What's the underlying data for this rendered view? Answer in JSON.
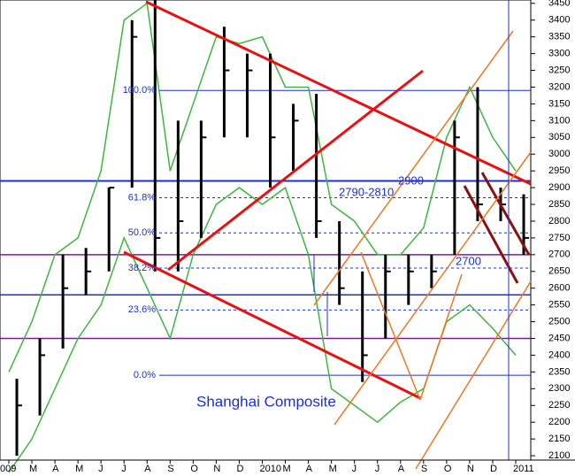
{
  "chart_data": {
    "type": "ohlc",
    "title": "Shanghai Composite",
    "categories": [
      "009",
      "M",
      "A",
      "M",
      "J",
      "J",
      "A",
      "S",
      "O",
      "N",
      "D",
      "2010",
      "M",
      "A",
      "M",
      "J",
      "J",
      "A",
      "S",
      "O",
      "N",
      "D",
      "2011"
    ],
    "high": [
      2330,
      2450,
      2700,
      2720,
      2900,
      3400,
      3460,
      3100,
      3100,
      3380,
      3300,
      3300,
      3150,
      3180,
      2800,
      2650,
      2700,
      2700,
      2700,
      3100,
      3200,
      2900,
      2880
    ],
    "low": [
      2100,
      2220,
      2420,
      2580,
      2650,
      2900,
      2650,
      2650,
      2750,
      3050,
      3050,
      2900,
      2950,
      2750,
      2550,
      2320,
      2450,
      2550,
      2600,
      2700,
      2800,
      2800,
      2700
    ],
    "close": [
      2250,
      2400,
      2600,
      2650,
      2900,
      3350,
      2750,
      2800,
      3050,
      3250,
      3250,
      3050,
      3100,
      2800,
      2600,
      2400,
      2650,
      2650,
      2650,
      3050,
      2850,
      2850,
      2750
    ],
    "band_upper": [
      2350,
      2500,
      2700,
      2750,
      2950,
      3400,
      3450,
      2950,
      3150,
      3350,
      3330,
      3350,
      3200,
      3200,
      2850,
      2800,
      2700,
      2700,
      2780,
      3050,
      3200,
      3050,
      2950
    ],
    "band_lower": [
      2050,
      2150,
      2300,
      2450,
      2550,
      2750,
      2600,
      2450,
      2700,
      2850,
      2900,
      2850,
      2900,
      2700,
      2300,
      2250,
      2200,
      2260,
      2300,
      2500,
      2550,
      2480,
      2400
    ],
    "bar_color": "#000000",
    "band_color": "#3cb83c",
    "ylim": [
      2087,
      3460
    ],
    "yticks": [
      2100,
      2150,
      2200,
      2250,
      2300,
      2350,
      2400,
      2450,
      2500,
      2550,
      2600,
      2650,
      2700,
      2750,
      2800,
      2850,
      2900,
      2950,
      3000,
      3050,
      3100,
      3150,
      3200,
      3250,
      3300,
      3350,
      3400,
      3450
    ],
    "levels": [
      {
        "value": 2920,
        "color": "#1c2fd6"
      },
      {
        "value": 2700,
        "color": "#7a1f8f"
      },
      {
        "value": 2450,
        "color": "#7a1f8f"
      },
      {
        "value": 2580,
        "color": "#1c2fd6"
      }
    ],
    "fib_levels": [
      {
        "value": 3190,
        "label": "100.0%"
      },
      {
        "value": 2870,
        "label": "61.8%"
      },
      {
        "value": 2765,
        "label": "50.0%"
      },
      {
        "value": 2660,
        "label": "38.2%"
      },
      {
        "value": 2535,
        "label": "23.6%"
      },
      {
        "value": 2340,
        "label": "0.0%"
      }
    ],
    "annotations": [
      "2900",
      "2790-2810",
      "2700"
    ]
  }
}
